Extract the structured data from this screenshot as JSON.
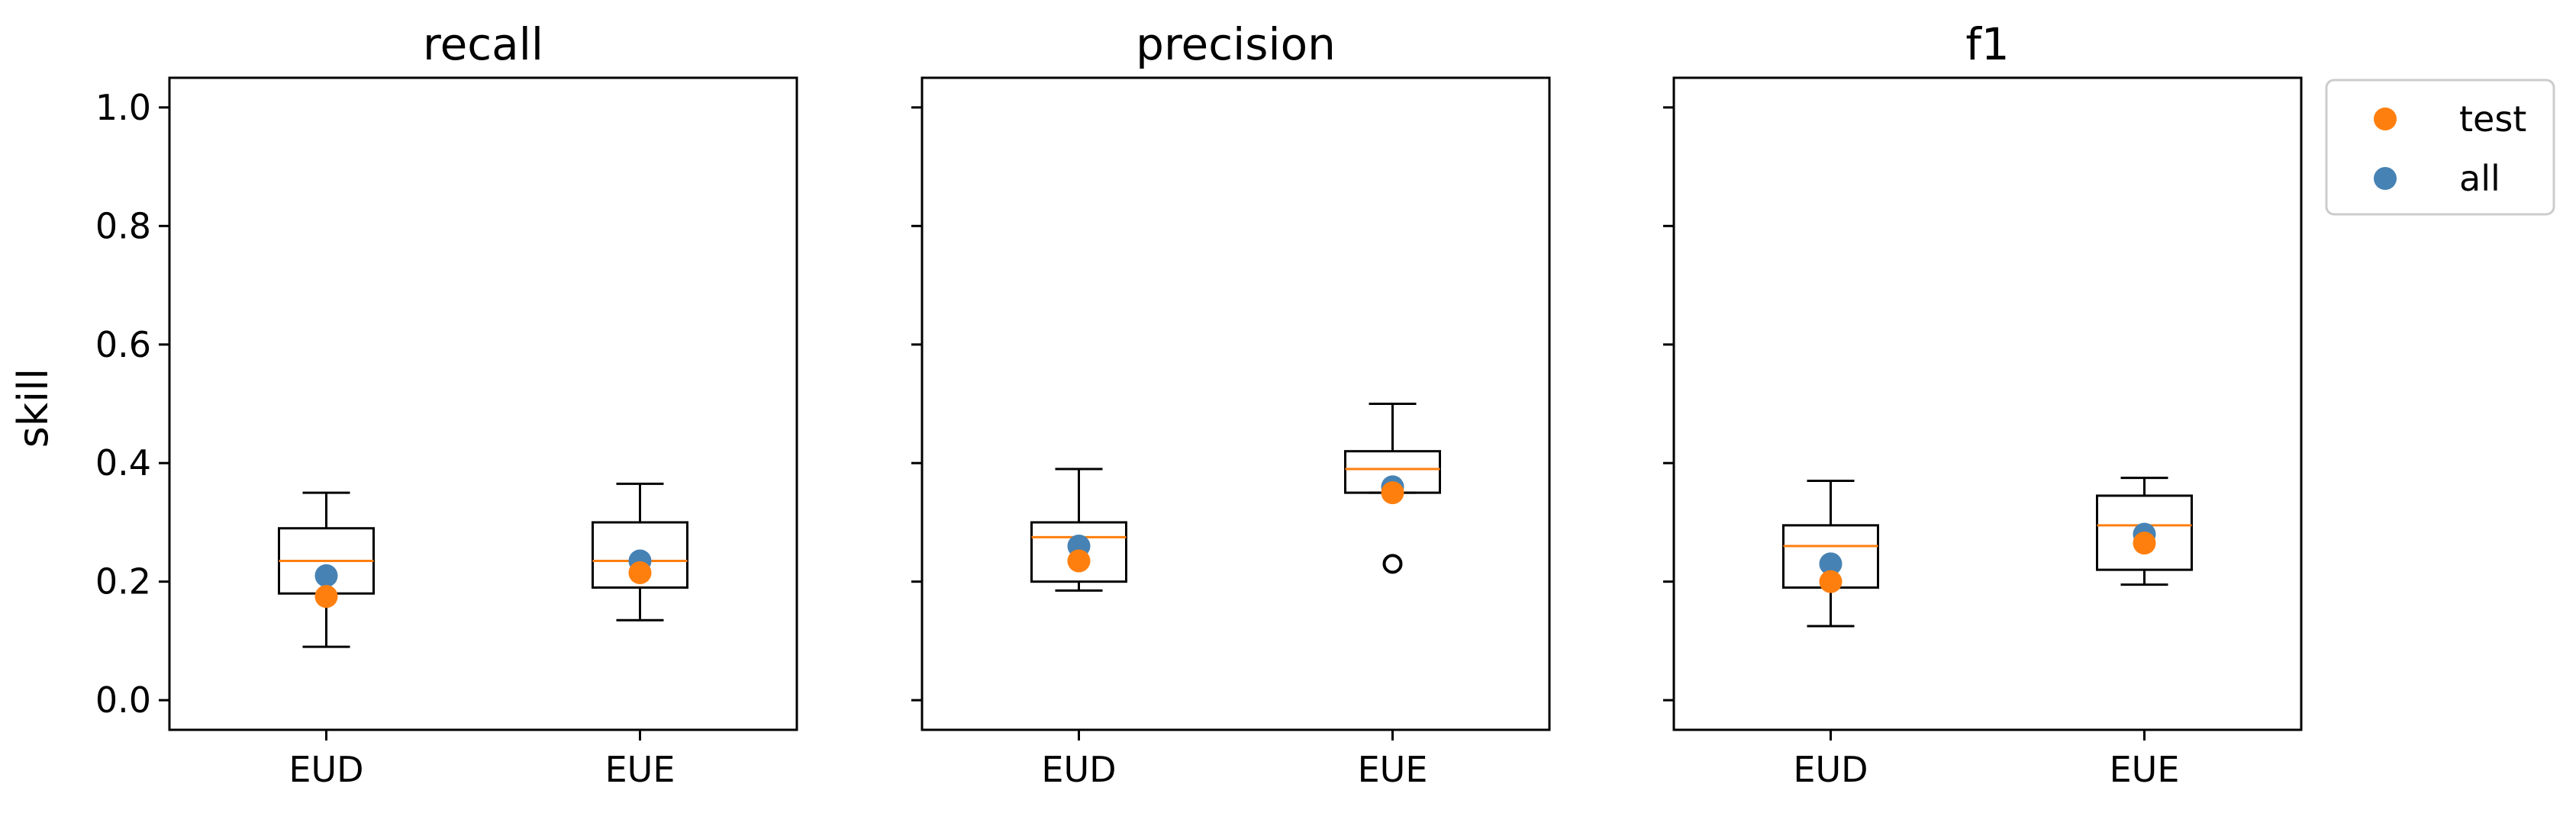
{
  "chart_data": {
    "type": "boxplot",
    "ylabel": "skill",
    "ylim": [
      -0.05,
      1.05
    ],
    "yticks": [
      0.0,
      0.2,
      0.4,
      0.6,
      0.8,
      1.0
    ],
    "ytick_labels": [
      "0.0",
      "0.2",
      "0.4",
      "0.6",
      "0.8",
      "1.0"
    ],
    "categories": [
      "EUD",
      "EUE"
    ],
    "shared_y": true,
    "colors": {
      "box": "#000000",
      "median": "#ff7f0e",
      "test": "#ff7f0e",
      "all": "#4682b4"
    },
    "legend": {
      "placement": "outside-top-right",
      "entries": [
        {
          "label": "test",
          "color": "#ff7f0e"
        },
        {
          "label": "all",
          "color": "#4682b4"
        }
      ]
    },
    "panels": [
      {
        "title": "recall",
        "boxes": [
          {
            "category": "EUD",
            "whisker_low": 0.09,
            "q1": 0.18,
            "median": 0.235,
            "q3": 0.29,
            "whisker_high": 0.35,
            "outliers": []
          },
          {
            "category": "EUE",
            "whisker_low": 0.135,
            "q1": 0.19,
            "median": 0.235,
            "q3": 0.3,
            "whisker_high": 0.365,
            "outliers": []
          }
        ],
        "series": [
          {
            "name": "all",
            "values": [
              0.21,
              0.235
            ]
          },
          {
            "name": "test",
            "values": [
              0.175,
              0.215
            ]
          }
        ]
      },
      {
        "title": "precision",
        "boxes": [
          {
            "category": "EUD",
            "whisker_low": 0.185,
            "q1": 0.2,
            "median": 0.275,
            "q3": 0.3,
            "whisker_high": 0.39,
            "outliers": []
          },
          {
            "category": "EUE",
            "whisker_low": 0.35,
            "q1": 0.35,
            "median": 0.39,
            "q3": 0.42,
            "whisker_high": 0.5,
            "outliers": [
              0.23
            ]
          }
        ],
        "series": [
          {
            "name": "all",
            "values": [
              0.26,
              0.36
            ]
          },
          {
            "name": "test",
            "values": [
              0.235,
              0.35
            ]
          }
        ]
      },
      {
        "title": "f1",
        "boxes": [
          {
            "category": "EUD",
            "whisker_low": 0.125,
            "q1": 0.19,
            "median": 0.26,
            "q3": 0.295,
            "whisker_high": 0.37,
            "outliers": []
          },
          {
            "category": "EUE",
            "whisker_low": 0.195,
            "q1": 0.22,
            "median": 0.295,
            "q3": 0.345,
            "whisker_high": 0.375,
            "outliers": []
          }
        ],
        "series": [
          {
            "name": "all",
            "values": [
              0.23,
              0.28
            ]
          },
          {
            "name": "test",
            "values": [
              0.2,
              0.265
            ]
          }
        ]
      }
    ]
  }
}
